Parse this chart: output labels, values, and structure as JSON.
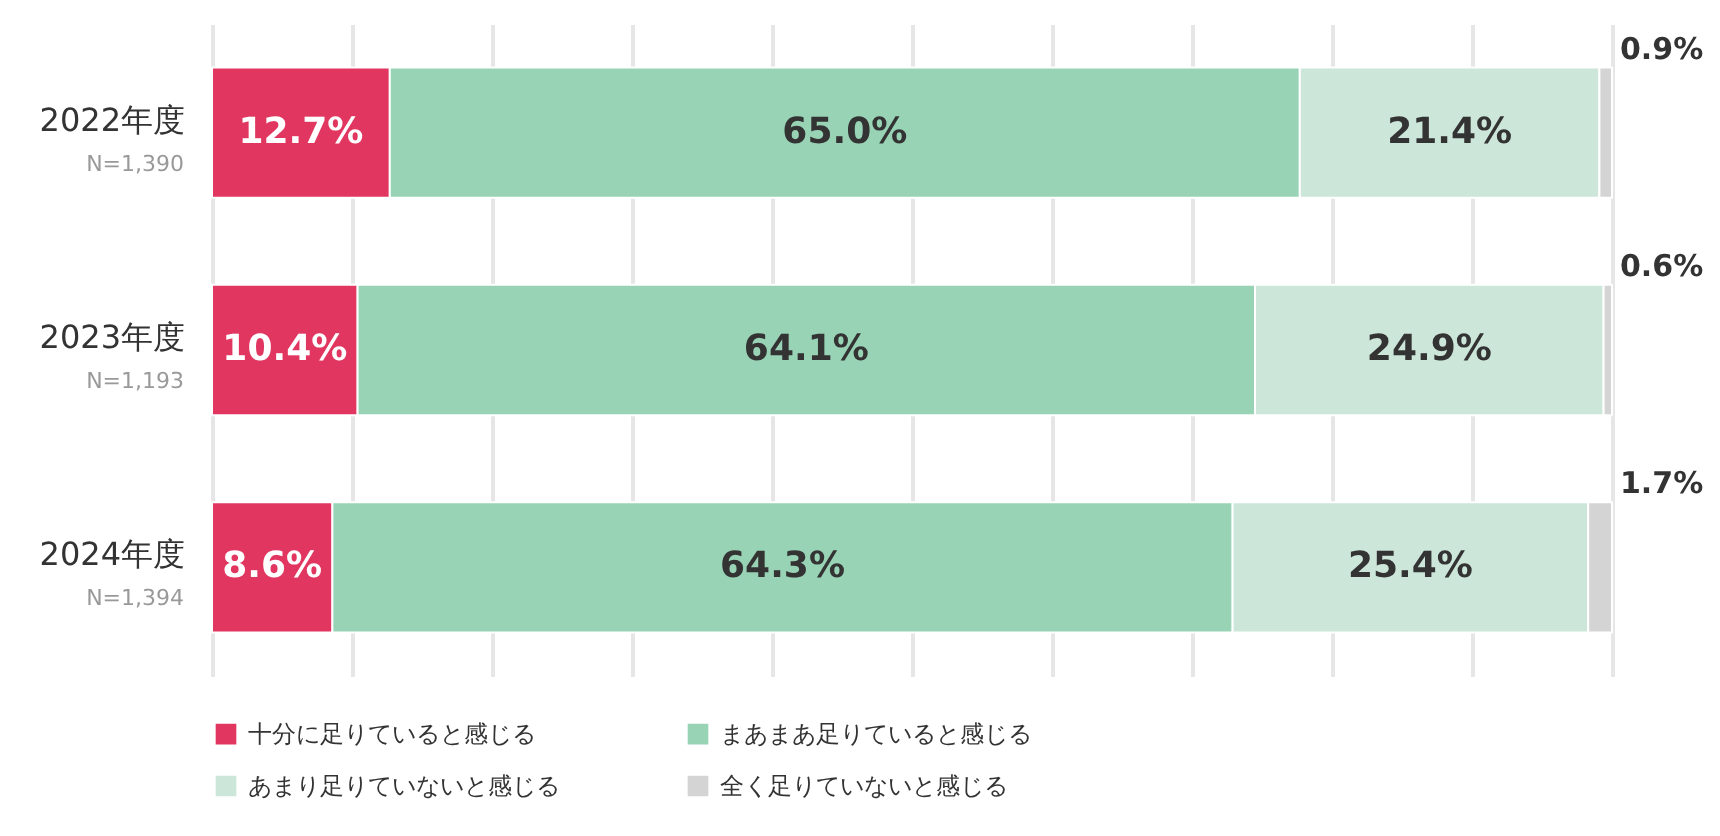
{
  "chart_data": {
    "type": "bar",
    "orientation": "horizontal",
    "stacked": true,
    "categories": [
      "2022年度",
      "2023年度",
      "2024年度"
    ],
    "annotations": [
      "N=1,390",
      "N=1,193",
      "N=1,394"
    ],
    "xlim": [
      0,
      100
    ],
    "xticks": [
      {
        "value": 0,
        "label": null
      },
      {
        "value": 10,
        "label": null
      },
      {
        "value": 20,
        "label": null
      },
      {
        "value": 30,
        "label": null
      },
      {
        "value": 40,
        "label": null
      },
      {
        "value": 50,
        "label": null
      },
      {
        "value": 60,
        "label": null
      },
      {
        "value": 70,
        "label": null
      },
      {
        "value": 80,
        "label": null
      },
      {
        "value": 90,
        "label": null
      },
      {
        "value": 100,
        "label": null
      }
    ],
    "grid": "x",
    "tick_labels": "y",
    "legend": "bottom",
    "series": [
      {
        "name": "十分に足りていると感じる",
        "color": "#e1365f",
        "values": [
          12.7,
          10.4,
          8.6
        ],
        "value_labels": [
          "12.7%",
          "10.4%",
          "8.6%"
        ]
      },
      {
        "name": "まあまあ足りていると感じる",
        "color": "#98d3b6",
        "values": [
          65.0,
          64.1,
          64.3
        ],
        "value_labels": [
          "65.0%",
          "64.1%",
          "64.3%"
        ]
      },
      {
        "name": "あまり足りていないと感じる",
        "color": "#cde6da",
        "values": [
          21.4,
          24.9,
          25.4
        ],
        "value_labels": [
          "21.4%",
          "24.9%",
          "25.4%"
        ]
      },
      {
        "name": "全く足りていないと感じる",
        "color": "#d4d4d4",
        "values": [
          0.9,
          0.6,
          1.7
        ],
        "value_labels": [
          "0.9%",
          "0.6%",
          "1.7%"
        ]
      }
    ]
  }
}
